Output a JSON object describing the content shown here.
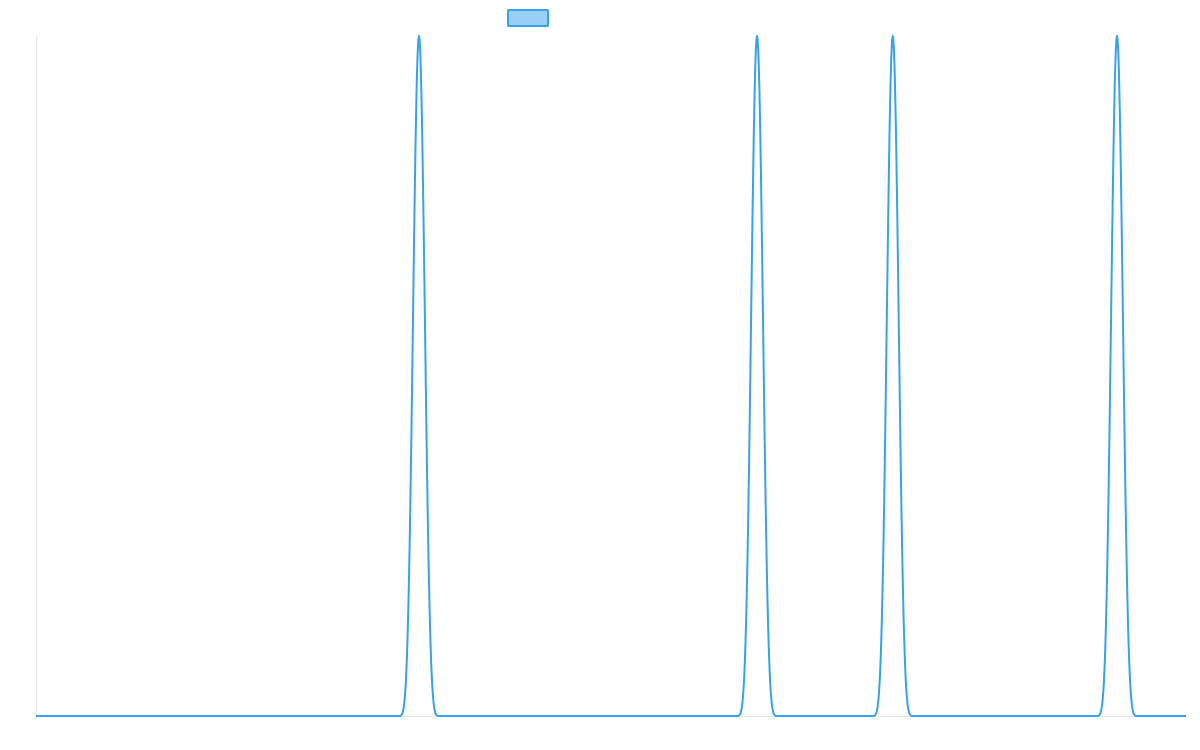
{
  "chart_data": {
    "type": "line",
    "title": "",
    "xlabel": "",
    "ylabel": "",
    "grid": false,
    "legend_position": "top-center",
    "xlim": [
      0,
      1000
    ],
    "ylim": [
      0,
      1
    ],
    "series": [
      {
        "name": "",
        "color": "#36a2eb",
        "fill_color": "#9ad0f5",
        "peaks": [
          {
            "x": 333,
            "y": 1
          },
          {
            "x": 627,
            "y": 1
          },
          {
            "x": 745,
            "y": 1
          },
          {
            "x": 940,
            "y": 1
          }
        ],
        "peak_half_width_x": 19.5,
        "baseline_y": 0
      }
    ]
  }
}
